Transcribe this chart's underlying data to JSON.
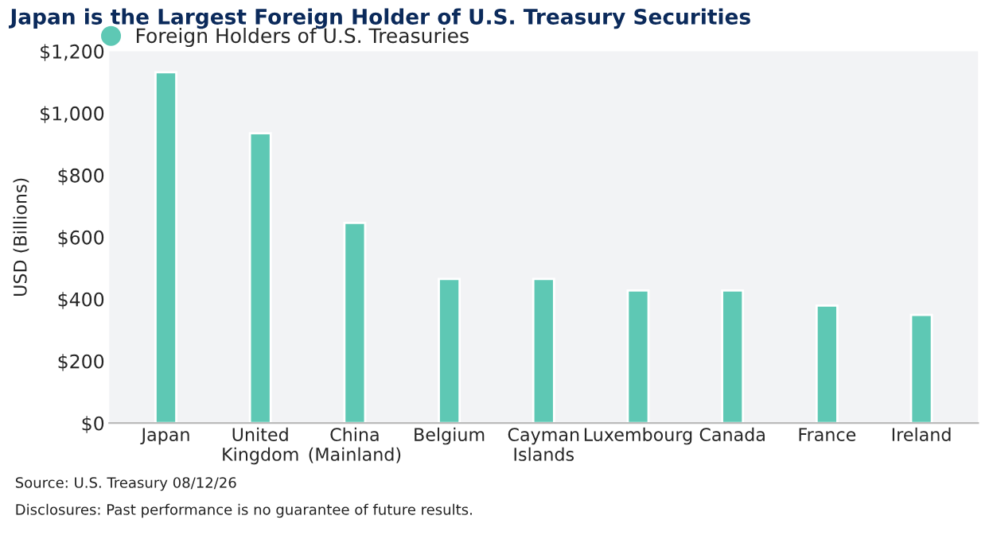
{
  "chart_data": {
    "type": "bar",
    "title": "Japan is the Largest Foreign Holder of U.S. Treasury Securities",
    "ylabel": "USD (Billions)",
    "categories": [
      "Japan",
      "United\nKingdom",
      "China\n(Mainland)",
      "Belgium",
      "Cayman\nIslands",
      "Luxembourg",
      "Canada",
      "France",
      "Ireland"
    ],
    "series": [
      {
        "name": "Foreign Holders of U.S. Treasuries",
        "color": "#5ec8b4",
        "values": [
          1132,
          935,
          646,
          465,
          465,
          428,
          428,
          379,
          349
        ]
      }
    ],
    "ylim": [
      0,
      1200
    ],
    "yticks": [
      {
        "value": 0,
        "label": "$0"
      },
      {
        "value": 200,
        "label": "$200"
      },
      {
        "value": 400,
        "label": "$400"
      },
      {
        "value": 600,
        "label": "$600"
      },
      {
        "value": 800,
        "label": "$800"
      },
      {
        "value": 1000,
        "label": "$1,000"
      },
      {
        "value": 1200,
        "label": "$1,200"
      }
    ],
    "grid": false,
    "legend": "top left",
    "annotations": [
      "Source: U.S. Treasury 08/12/26",
      "Disclosures: Past performance is no guarantee of future results."
    ]
  }
}
